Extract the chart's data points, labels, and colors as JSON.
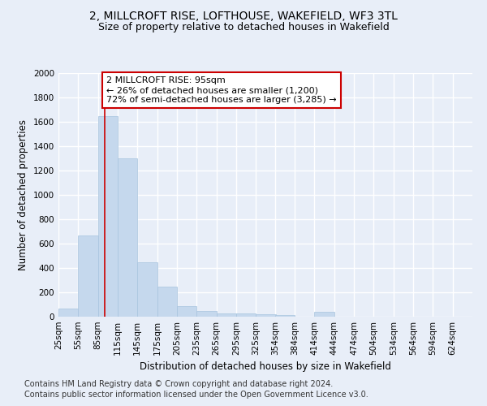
{
  "title1": "2, MILLCROFT RISE, LOFTHOUSE, WAKEFIELD, WF3 3TL",
  "title2": "Size of property relative to detached houses in Wakefield",
  "xlabel": "Distribution of detached houses by size in Wakefield",
  "ylabel": "Number of detached properties",
  "bar_color": "#c5d8ed",
  "bar_edge_color": "#a8c4de",
  "annotation_line_color": "#cc0000",
  "annotation_box_edge": "#cc0000",
  "annotation_text": "2 MILLCROFT RISE: 95sqm\n← 26% of detached houses are smaller (1,200)\n72% of semi-detached houses are larger (3,285) →",
  "property_size_sqm": 95,
  "categories": [
    "25sqm",
    "55sqm",
    "85sqm",
    "115sqm",
    "145sqm",
    "175sqm",
    "205sqm",
    "235sqm",
    "265sqm",
    "295sqm",
    "325sqm",
    "354sqm",
    "384sqm",
    "414sqm",
    "444sqm",
    "474sqm",
    "504sqm",
    "534sqm",
    "564sqm",
    "594sqm",
    "624sqm"
  ],
  "bin_edges": [
    25,
    55,
    85,
    115,
    145,
    175,
    205,
    235,
    265,
    295,
    325,
    354,
    384,
    414,
    444,
    474,
    504,
    534,
    564,
    594,
    624
  ],
  "values": [
    65,
    670,
    1650,
    1300,
    445,
    250,
    85,
    50,
    30,
    25,
    20,
    15,
    0,
    40,
    0,
    0,
    0,
    0,
    0,
    0,
    0
  ],
  "ylim": [
    0,
    2000
  ],
  "yticks": [
    0,
    200,
    400,
    600,
    800,
    1000,
    1200,
    1400,
    1600,
    1800,
    2000
  ],
  "footer1": "Contains HM Land Registry data © Crown copyright and database right 2024.",
  "footer2": "Contains public sector information licensed under the Open Government Licence v3.0.",
  "bg_color": "#e8eef8",
  "plot_bg_color": "#e8eef8",
  "grid_color": "#ffffff",
  "title1_fontsize": 10,
  "title2_fontsize": 9,
  "axis_label_fontsize": 8.5,
  "tick_fontsize": 7.5,
  "annotation_fontsize": 8,
  "footer_fontsize": 7
}
